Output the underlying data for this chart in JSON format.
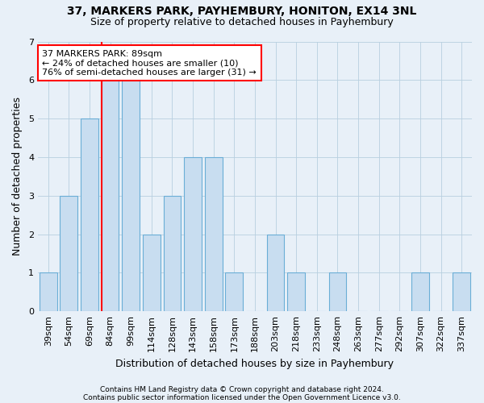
{
  "title1": "37, MARKERS PARK, PAYHEMBURY, HONITON, EX14 3NL",
  "title2": "Size of property relative to detached houses in Payhembury",
  "xlabel": "Distribution of detached houses by size in Payhembury",
  "ylabel": "Number of detached properties",
  "categories": [
    "39sqm",
    "54sqm",
    "69sqm",
    "84sqm",
    "99sqm",
    "114sqm",
    "128sqm",
    "143sqm",
    "158sqm",
    "173sqm",
    "188sqm",
    "203sqm",
    "218sqm",
    "233sqm",
    "248sqm",
    "263sqm",
    "277sqm",
    "292sqm",
    "307sqm",
    "322sqm",
    "337sqm"
  ],
  "values": [
    1,
    3,
    5,
    6,
    6,
    2,
    3,
    4,
    4,
    1,
    0,
    2,
    1,
    0,
    1,
    0,
    0,
    0,
    1,
    0,
    1
  ],
  "bar_color": "#c8ddf0",
  "bar_edge_color": "#6aaed6",
  "red_line_index": 3,
  "annotation_line1": "37 MARKERS PARK: 89sqm",
  "annotation_line2": "← 24% of detached houses are smaller (10)",
  "annotation_line3": "76% of semi-detached houses are larger (31) →",
  "annotation_box_color": "white",
  "annotation_box_edge": "red",
  "ylim": [
    0,
    7
  ],
  "yticks": [
    0,
    1,
    2,
    3,
    4,
    5,
    6,
    7
  ],
  "footer1": "Contains HM Land Registry data © Crown copyright and database right 2024.",
  "footer2": "Contains public sector information licensed under the Open Government Licence v3.0.",
  "bg_color": "#e8f0f8",
  "plot_bg_color": "#e8f0f8",
  "title1_fontsize": 10,
  "title2_fontsize": 9,
  "annotation_fontsize": 8,
  "tick_fontsize": 8,
  "axis_label_fontsize": 9,
  "footer_fontsize": 6.5
}
